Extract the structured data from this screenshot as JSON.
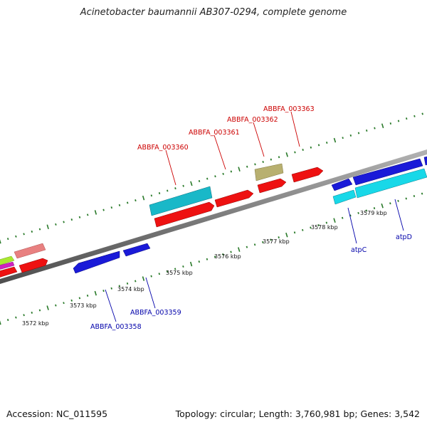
{
  "title": "Acinetobacter baumannii AB307-0294, complete genome",
  "footer": {
    "accession": "Accession: NC_011595",
    "summary": "Topology: circular; Length: 3,760,981 bp; Genes: 3,542"
  },
  "scale_labels": [
    "3572 kbp",
    "3573 kbp",
    "3574 kbp",
    "3575 kbp",
    "3576 kbp",
    "3577 kbp",
    "3578 kbp",
    "3579 kbp"
  ],
  "gene_labels": {
    "top": [
      "ABBFA_003360",
      "ABBFA_003361",
      "ABBFA_003362",
      "ABBFA_003363"
    ],
    "bottom": [
      "ABBFA_003358",
      "ABBFA_003359",
      "atpC",
      "atpD"
    ]
  },
  "colors": {
    "red": "#ee1111",
    "blue": "#1a1ad8",
    "cyan": "#18d8e8",
    "teal": "#19b8c8",
    "khaki": "#b8b070",
    "pink": "#e88080",
    "lime": "#a8e830",
    "magenta": "#d020c0",
    "tick_green": "#2a7a2a",
    "label_red": "#cc0000",
    "label_blue": "#0000aa",
    "backbone": "#8a8a8a"
  }
}
